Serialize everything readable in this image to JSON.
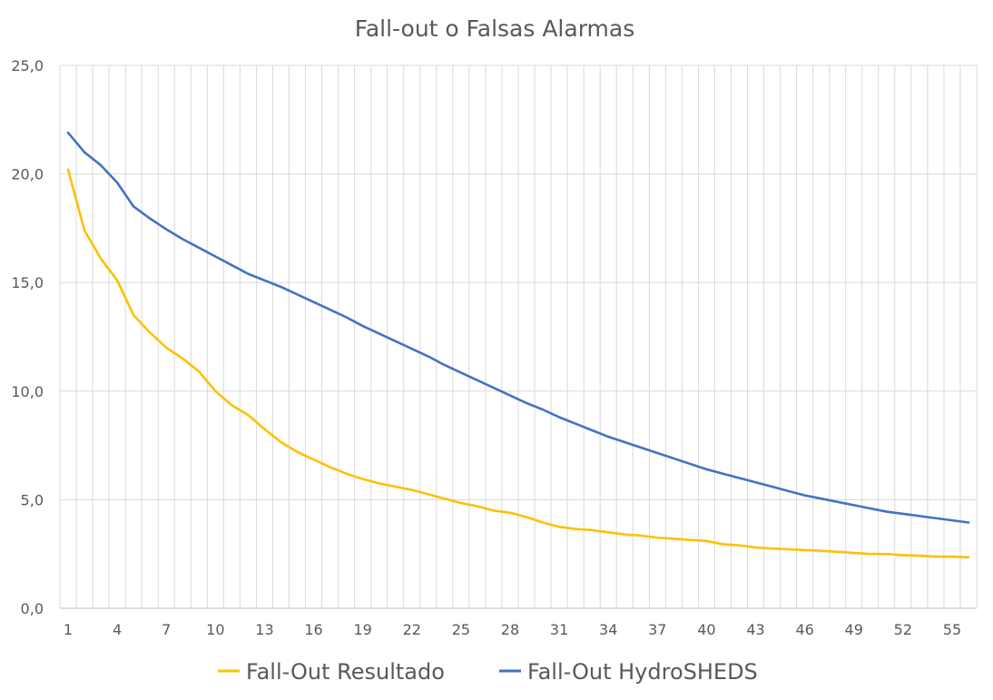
{
  "chart_data": {
    "type": "line",
    "title": "Fall-out o Falsas Alarmas",
    "xlabel": "",
    "ylabel": "",
    "x": [
      1,
      2,
      3,
      4,
      5,
      6,
      7,
      8,
      9,
      10,
      11,
      12,
      13,
      14,
      15,
      16,
      17,
      18,
      19,
      20,
      21,
      22,
      23,
      24,
      25,
      26,
      27,
      28,
      29,
      30,
      31,
      32,
      33,
      34,
      35,
      36,
      37,
      38,
      39,
      40,
      41,
      42,
      43,
      44,
      45,
      46,
      47,
      48,
      49,
      50,
      51,
      52,
      53,
      54,
      55,
      56
    ],
    "x_tick_labels": [
      "1",
      "4",
      "7",
      "10",
      "13",
      "16",
      "19",
      "22",
      "25",
      "28",
      "31",
      "34",
      "37",
      "40",
      "43",
      "46",
      "49",
      "52",
      "55"
    ],
    "x_tick_values": [
      1,
      4,
      7,
      10,
      13,
      16,
      19,
      22,
      25,
      28,
      31,
      34,
      37,
      40,
      43,
      46,
      49,
      52,
      55
    ],
    "ylim": [
      0,
      25
    ],
    "y_ticks": [
      0,
      5,
      10,
      15,
      20,
      25
    ],
    "y_tick_labels": [
      "0,0",
      "5,0",
      "10,0",
      "15,0",
      "20,0",
      "25,0"
    ],
    "grid": true,
    "legend_position": "bottom",
    "series": [
      {
        "name": "Fall-Out Resultado",
        "color": "#FFC000",
        "values": [
          20.2,
          17.4,
          16.1,
          15.1,
          13.5,
          12.7,
          12.0,
          11.5,
          10.9,
          10.0,
          9.35,
          8.9,
          8.25,
          7.65,
          7.2,
          6.85,
          6.5,
          6.2,
          5.95,
          5.75,
          5.6,
          5.45,
          5.25,
          5.05,
          4.85,
          4.7,
          4.5,
          4.4,
          4.2,
          3.95,
          3.75,
          3.65,
          3.6,
          3.5,
          3.4,
          3.35,
          3.25,
          3.2,
          3.15,
          3.1,
          2.95,
          2.9,
          2.8,
          2.75,
          2.72,
          2.68,
          2.65,
          2.6,
          2.55,
          2.5,
          2.5,
          2.45,
          2.42,
          2.38,
          2.38,
          2.35
        ]
      },
      {
        "name": "Fall-Out HydroSHEDS",
        "color": "#4472C4",
        "values": [
          21.9,
          21.0,
          20.4,
          19.6,
          18.5,
          17.95,
          17.45,
          17.0,
          16.6,
          16.2,
          15.8,
          15.4,
          15.1,
          14.8,
          14.45,
          14.1,
          13.75,
          13.4,
          13.0,
          12.65,
          12.3,
          11.95,
          11.6,
          11.2,
          10.85,
          10.5,
          10.15,
          9.8,
          9.45,
          9.15,
          8.8,
          8.5,
          8.2,
          7.9,
          7.65,
          7.4,
          7.15,
          6.9,
          6.65,
          6.4,
          6.2,
          6.0,
          5.8,
          5.6,
          5.4,
          5.2,
          5.05,
          4.9,
          4.75,
          4.6,
          4.45,
          4.35,
          4.25,
          4.15,
          4.05,
          3.95
        ]
      }
    ]
  }
}
